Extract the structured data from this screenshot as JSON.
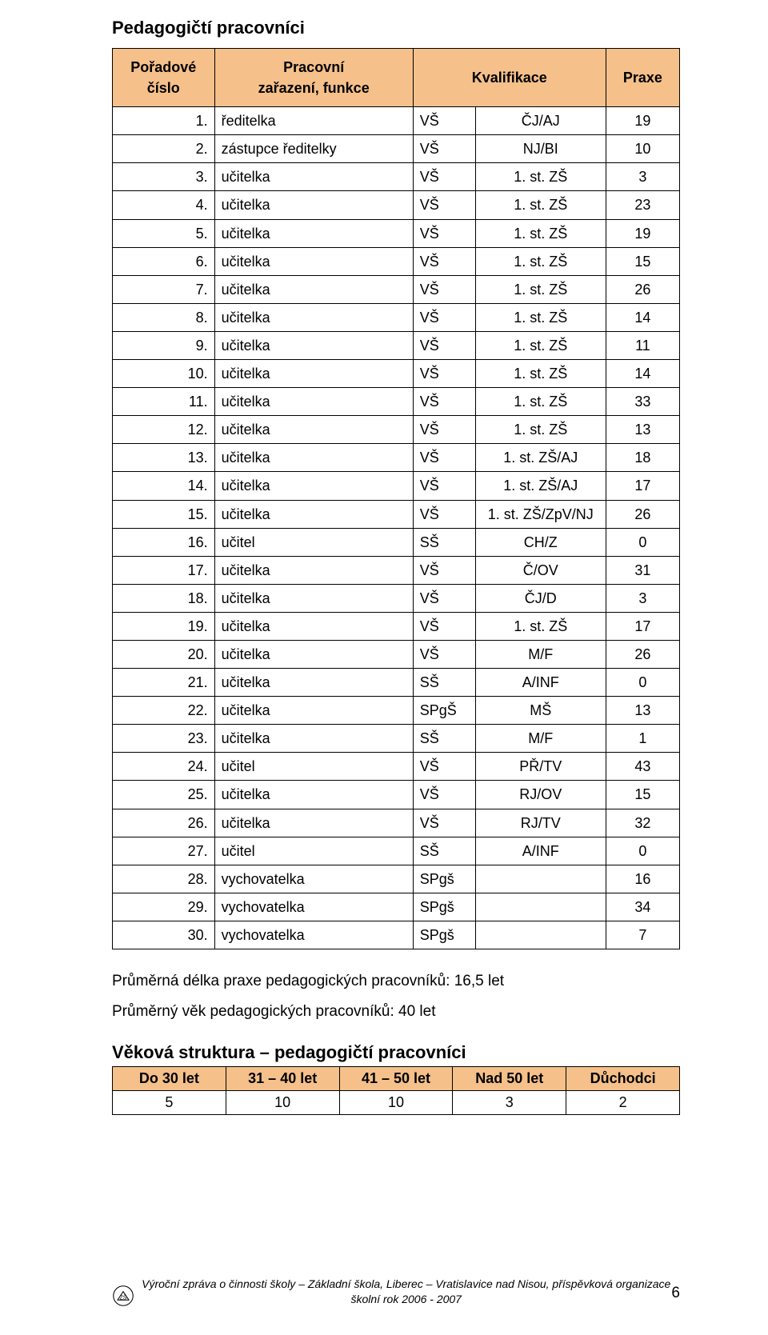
{
  "title": "Pedagogičtí pracovníci",
  "table": {
    "headers": {
      "col1": "Pořadové\nčíslo",
      "col2": "Pracovní\nzařazení, funkce",
      "col34": "Kvalifikace",
      "col5": "Praxe"
    },
    "rows": [
      [
        "1.",
        "ředitelka",
        "VŠ",
        "ČJ/AJ",
        "19"
      ],
      [
        "2.",
        "zástupce ředitelky",
        "VŠ",
        "NJ/BI",
        "10"
      ],
      [
        "3.",
        "učitelka",
        "VŠ",
        "1. st. ZŠ",
        "3"
      ],
      [
        "4.",
        "učitelka",
        "VŠ",
        "1. st. ZŠ",
        "23"
      ],
      [
        "5.",
        "učitelka",
        "VŠ",
        "1. st. ZŠ",
        "19"
      ],
      [
        "6.",
        "učitelka",
        "VŠ",
        "1. st. ZŠ",
        "15"
      ],
      [
        "7.",
        "učitelka",
        "VŠ",
        "1. st. ZŠ",
        "26"
      ],
      [
        "8.",
        "učitelka",
        "VŠ",
        "1. st. ZŠ",
        "14"
      ],
      [
        "9.",
        "učitelka",
        "VŠ",
        "1. st. ZŠ",
        "11"
      ],
      [
        "10.",
        "učitelka",
        "VŠ",
        "1. st. ZŠ",
        "14"
      ],
      [
        "11.",
        "učitelka",
        "VŠ",
        "1. st. ZŠ",
        "33"
      ],
      [
        "12.",
        "učitelka",
        "VŠ",
        "1. st. ZŠ",
        "13"
      ],
      [
        "13.",
        "učitelka",
        "VŠ",
        "1. st. ZŠ/AJ",
        "18"
      ],
      [
        "14.",
        "učitelka",
        "VŠ",
        "1. st. ZŠ/AJ",
        "17"
      ],
      [
        "15.",
        "učitelka",
        "VŠ",
        "1. st. ZŠ/ZpV/NJ",
        "26"
      ],
      [
        "16.",
        "učitel",
        "SŠ",
        "CH/Z",
        "0"
      ],
      [
        "17.",
        "učitelka",
        "VŠ",
        "Č/OV",
        "31"
      ],
      [
        "18.",
        "učitelka",
        "VŠ",
        "ČJ/D",
        "3"
      ],
      [
        "19.",
        "učitelka",
        "VŠ",
        "1. st. ZŠ",
        "17"
      ],
      [
        "20.",
        "učitelka",
        "VŠ",
        "M/F",
        "26"
      ],
      [
        "21.",
        "učitelka",
        "SŠ",
        "A/INF",
        "0"
      ],
      [
        "22.",
        "učitelka",
        "SPgŠ",
        "MŠ",
        "13"
      ],
      [
        "23.",
        "učitelka",
        "SŠ",
        "M/F",
        "1"
      ],
      [
        "24.",
        "učitel",
        "VŠ",
        "PŘ/TV",
        "43"
      ],
      [
        "25.",
        "učitelka",
        "VŠ",
        "RJ/OV",
        "15"
      ],
      [
        "26.",
        "učitelka",
        "VŠ",
        "RJ/TV",
        "32"
      ],
      [
        "27.",
        "učitel",
        "SŠ",
        "A/INF",
        "0"
      ],
      [
        "28.",
        "vychovatelka",
        "SPgš",
        "",
        "16"
      ],
      [
        "29.",
        "vychovatelka",
        "SPgš",
        "",
        "34"
      ],
      [
        "30.",
        "vychovatelka",
        "SPgš",
        "",
        "7"
      ]
    ]
  },
  "summary": {
    "line1": "Průměrná délka praxe pedagogických pracovníků: 16,5 let",
    "line2": "Průměrný věk pedagogických pracovníků: 40 let"
  },
  "age_structure": {
    "heading": "Věková struktura – pedagogičtí pracovníci",
    "headers": [
      "Do 30 let",
      "31 – 40 let",
      "41 – 50 let",
      "Nad 50 let",
      "Důchodci"
    ],
    "values": [
      "5",
      "10",
      "10",
      "3",
      "2"
    ]
  },
  "footer": {
    "line1": "Výroční zpráva o činnosti školy – Základní škola, Liberec – Vratislavice nad Nisou, příspěvková organizace",
    "line2": "školní rok 2006 - 2007",
    "page": "6"
  },
  "colors": {
    "header_bg": "#f5c08a",
    "border": "#000000",
    "text": "#000000",
    "background": "#ffffff"
  }
}
